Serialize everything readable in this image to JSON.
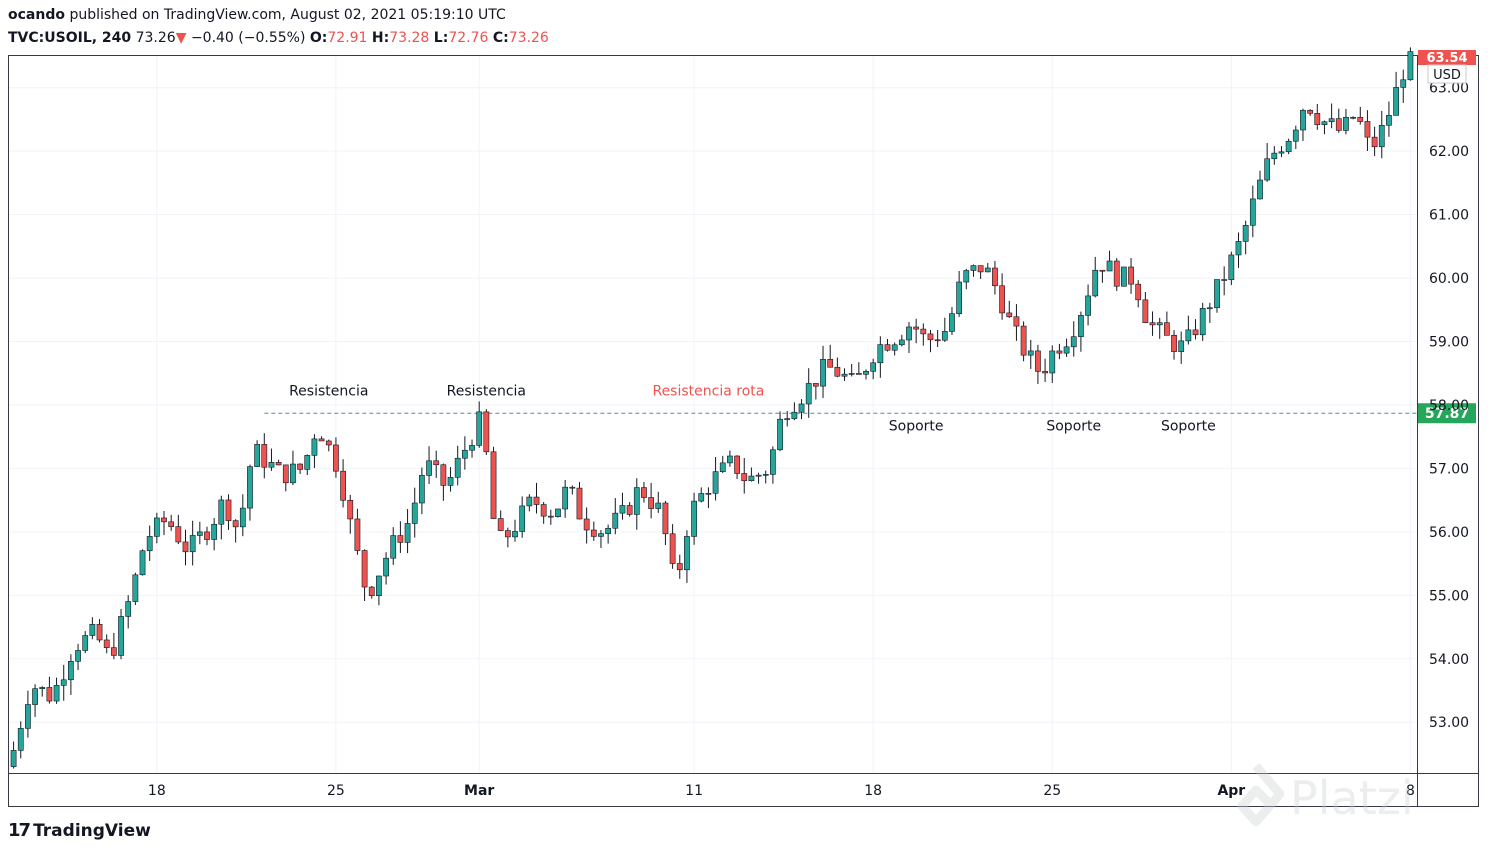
{
  "header": {
    "author": "ocando",
    "published_text": "published on TradingView.com, August 02, 2021 05:19:10 UTC",
    "symbol": "TVC:USOIL, 240",
    "last": "73.26",
    "arrow": "▼",
    "change": "−0.40 (−0.55%)",
    "o_label": "O:",
    "o_val": "72.91",
    "h_label": "H:",
    "h_val": "73.28",
    "l_label": "L:",
    "l_val": "72.76",
    "c_label": "C:",
    "c_val": "73.26"
  },
  "footer": {
    "brand": "TradingView",
    "watermark": "Platzi"
  },
  "colors": {
    "up": "#26a69a",
    "down": "#ef5350",
    "grid": "#f0f3fa",
    "support": "#26a69a",
    "price_tag": "#ef5350"
  },
  "chart_data": {
    "type": "candlestick",
    "currency": "USD",
    "ylim": [
      52.2,
      63.5
    ],
    "yticks": [
      "53.00",
      "54.00",
      "55.00",
      "56.00",
      "57.00",
      "58.00",
      "59.00",
      "60.00",
      "61.00",
      "62.00",
      "63.00"
    ],
    "xticks": [
      {
        "label": "18",
        "index": 20
      },
      {
        "label": "25",
        "index": 45
      },
      {
        "label": "Mar",
        "index": 65
      },
      {
        "label": "11",
        "index": 95
      },
      {
        "label": "18",
        "index": 120
      },
      {
        "label": "25",
        "index": 145
      },
      {
        "label": "Apr",
        "index": 170
      },
      {
        "label": "8",
        "index": 195
      }
    ],
    "level": {
      "value": 57.87,
      "label": "57.87",
      "start_index": 35
    },
    "last_price_label": "63.54",
    "annotations": [
      {
        "text": "Resistencia",
        "index": 44,
        "y": 58.15,
        "color": "#131722"
      },
      {
        "text": "Resistencia",
        "index": 66,
        "y": 58.15,
        "color": "#131722"
      },
      {
        "text": "Resistencia rota",
        "index": 97,
        "y": 58.15,
        "color": "#ef5350"
      },
      {
        "text": "Soporte",
        "index": 126,
        "y": 57.6,
        "color": "#131722"
      },
      {
        "text": "Soporte",
        "index": 148,
        "y": 57.6,
        "color": "#131722"
      },
      {
        "text": "Soporte",
        "index": 164,
        "y": 57.6,
        "color": "#131722"
      }
    ],
    "path": [
      [
        0,
        52.3
      ],
      [
        3,
        53.6
      ],
      [
        6,
        53.4
      ],
      [
        9,
        54.2
      ],
      [
        12,
        54.4
      ],
      [
        14,
        54.0
      ],
      [
        17,
        55.0
      ],
      [
        19,
        55.9
      ],
      [
        22,
        56.2
      ],
      [
        25,
        55.7
      ],
      [
        28,
        56.1
      ],
      [
        30,
        56.5
      ],
      [
        32,
        56.0
      ],
      [
        34,
        57.3
      ],
      [
        38,
        56.9
      ],
      [
        41,
        57.0
      ],
      [
        43,
        57.7
      ],
      [
        46,
        57.0
      ],
      [
        48,
        55.9
      ],
      [
        50,
        55.0
      ],
      [
        53,
        55.7
      ],
      [
        56,
        56.2
      ],
      [
        58,
        57.1
      ],
      [
        61,
        56.7
      ],
      [
        64,
        57.4
      ],
      [
        66,
        57.8
      ],
      [
        68,
        55.8
      ],
      [
        70,
        56.0
      ],
      [
        73,
        56.5
      ],
      [
        76,
        56.3
      ],
      [
        78,
        56.7
      ],
      [
        80,
        56.2
      ],
      [
        83,
        56.0
      ],
      [
        86,
        56.3
      ],
      [
        88,
        56.7
      ],
      [
        91,
        56.3
      ],
      [
        93,
        55.1
      ],
      [
        95,
        56.3
      ],
      [
        98,
        56.8
      ],
      [
        101,
        57.1
      ],
      [
        103,
        56.8
      ],
      [
        106,
        57.0
      ],
      [
        108,
        57.9
      ],
      [
        111,
        58.2
      ],
      [
        114,
        58.6
      ],
      [
        116,
        58.5
      ],
      [
        118,
        58.3
      ],
      [
        121,
        58.9
      ],
      [
        124,
        59.1
      ],
      [
        126,
        59.3
      ],
      [
        128,
        59.0
      ],
      [
        131,
        59.2
      ],
      [
        133,
        60.0
      ],
      [
        136,
        60.2
      ],
      [
        138,
        59.8
      ],
      [
        140,
        59.2
      ],
      [
        142,
        58.8
      ],
      [
        144,
        58.5
      ],
      [
        146,
        58.9
      ],
      [
        148,
        59.1
      ],
      [
        150,
        59.6
      ],
      [
        152,
        60.3
      ],
      [
        155,
        60.0
      ],
      [
        157,
        60.0
      ],
      [
        159,
        59.3
      ],
      [
        162,
        59.0
      ],
      [
        164,
        58.9
      ],
      [
        167,
        59.5
      ],
      [
        169,
        59.9
      ],
      [
        172,
        60.6
      ],
      [
        174,
        61.3
      ],
      [
        176,
        61.9
      ],
      [
        179,
        62.3
      ],
      [
        181,
        62.8
      ],
      [
        183,
        62.5
      ],
      [
        186,
        62.3
      ],
      [
        188,
        62.6
      ],
      [
        190,
        62.0
      ],
      [
        192,
        62.4
      ],
      [
        195,
        63.4
      ]
    ],
    "n_candles": 196
  }
}
